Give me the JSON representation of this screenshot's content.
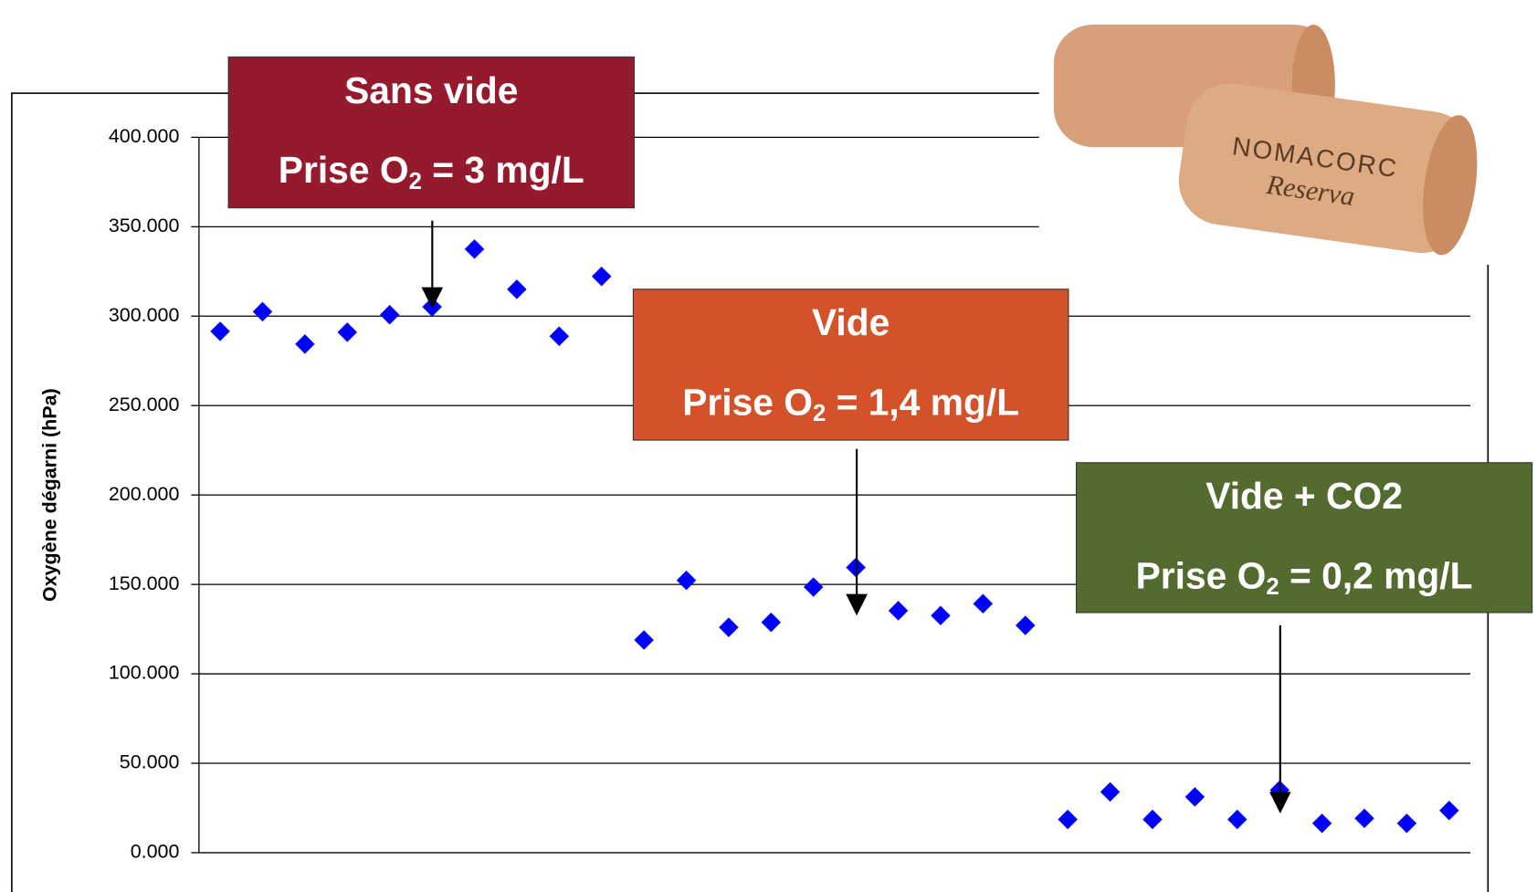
{
  "chart_data": {
    "type": "scatter",
    "y_label": "Oxygène dégarni (hPa)",
    "x": [
      1,
      2,
      3,
      4,
      5,
      6,
      7,
      8,
      9,
      10,
      11,
      12,
      13,
      14,
      15,
      16,
      17,
      18,
      19,
      20,
      21,
      22,
      23,
      24,
      25,
      26,
      27,
      28,
      29,
      30
    ],
    "series": [
      {
        "color": "#0000ff",
        "values": [
          291.5,
          302.5,
          284.4,
          291,
          300.8,
          305.2,
          337.5,
          315,
          288.8,
          322.2,
          118.9,
          152.3,
          126,
          128.8,
          148.5,
          159.5,
          135.3,
          132.6,
          139.2,
          127.1,
          18.6,
          34,
          18.6,
          31.2,
          18.6,
          35,
          16.4,
          19.2,
          16.4,
          23.6
        ]
      }
    ],
    "xlim": [
      0.5,
      30.5
    ],
    "ylim": [
      0,
      400
    ],
    "yticks": [
      {
        "value": 0,
        "label": "0.000"
      },
      {
        "value": 50,
        "label": "50.000"
      },
      {
        "value": 100,
        "label": "100.000"
      },
      {
        "value": 150,
        "label": "150.000"
      },
      {
        "value": 200,
        "label": "200.000"
      },
      {
        "value": 250,
        "label": "250.000"
      },
      {
        "value": 300,
        "label": "300.000"
      },
      {
        "value": 350,
        "label": "350.000"
      },
      {
        "value": 400,
        "label": "400.000"
      }
    ],
    "grid": true,
    "annotations": [
      {
        "title": "Sans vide",
        "text": "Prise O",
        "sub": "2",
        "rest": " = 3 mg/L",
        "color": "#951a2e"
      },
      {
        "title": "Vide",
        "text": "Prise O",
        "sub": "2",
        "rest": " = 1,4 mg/L",
        "color": "#d4522a"
      },
      {
        "title": "Vide + CO2",
        "text": "Prise O",
        "sub": "2",
        "rest": " = 0,2 mg/L",
        "color": "#536b2e"
      }
    ],
    "logo": {
      "brand": "NOMACORC",
      "line": "Reserva"
    }
  }
}
